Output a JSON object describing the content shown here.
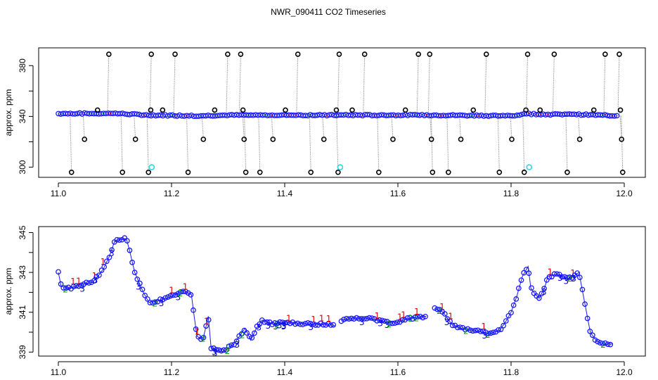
{
  "title": "NWR_090411  CO2 Timeseries",
  "colors": {
    "raw_points": "#000000",
    "raw_lines": "#9a9a9a",
    "blue": "#1a1aff",
    "flagged": "#33d6e0",
    "label_1": "#e00000",
    "label_2": "#00a000",
    "label_3": "#0000cc",
    "mean_line": "#1a1aff"
  },
  "chart_data": [
    {
      "type": "scatter",
      "title": "NWR_090411  CO2 Timeseries",
      "xlabel": "",
      "ylabel": "approx. ppm",
      "xlim": [
        11.0,
        12.0
      ],
      "ylim": [
        292,
        394
      ],
      "xticks": [
        "11.0",
        "11.2",
        "11.4",
        "11.6",
        "11.8",
        "12.0"
      ],
      "yticks": [
        "300",
        "340",
        "380"
      ],
      "grid": false,
      "series": [
        {
          "description": "raw points (black circles, grey drop lines)",
          "baseline": [
            [
              11.0,
              342.2
            ],
            [
              11.1,
              342.4
            ],
            [
              11.16,
              341.0
            ],
            [
              11.25,
              340.5
            ],
            [
              11.3,
              341.0
            ],
            [
              11.5,
              341.0
            ],
            [
              11.66,
              341.0
            ],
            [
              11.8,
              340.5
            ],
            [
              11.83,
              342.0
            ],
            [
              11.88,
              341.5
            ],
            [
              11.92,
              341.5
            ],
            [
              11.99,
              340.5
            ]
          ],
          "outliers": [
            [
              11.022,
              296
            ],
            [
              11.045,
              322
            ],
            [
              11.068,
              345
            ],
            [
              11.088,
              389
            ],
            [
              11.112,
              296
            ],
            [
              11.135,
              322
            ],
            [
              11.158,
              296
            ],
            [
              11.162,
              345
            ],
            [
              11.163,
              389
            ],
            [
              11.183,
              345
            ],
            [
              11.205,
              389
            ],
            [
              11.228,
              296
            ],
            [
              11.255,
              322
            ],
            [
              11.275,
              345
            ],
            [
              11.298,
              389
            ],
            [
              11.321,
              389
            ],
            [
              11.325,
              345
            ],
            [
              11.327,
              322
            ],
            [
              11.33,
              296
            ],
            [
              11.355,
              296
            ],
            [
              11.378,
              322
            ],
            [
              11.4,
              345
            ],
            [
              11.422,
              389
            ],
            [
              11.445,
              296
            ],
            [
              11.468,
              322
            ],
            [
              11.49,
              345
            ],
            [
              11.493,
              296
            ],
            [
              11.495,
              389
            ],
            [
              11.518,
              345
            ],
            [
              11.54,
              389
            ],
            [
              11.565,
              296
            ],
            [
              11.59,
              322
            ],
            [
              11.612,
              345
            ],
            [
              11.635,
              389
            ],
            [
              11.655,
              389
            ],
            [
              11.658,
              322
            ],
            [
              11.66,
              296
            ],
            [
              11.688,
              296
            ],
            [
              11.71,
              322
            ],
            [
              11.732,
              345
            ],
            [
              11.755,
              389
            ],
            [
              11.778,
              296
            ],
            [
              11.8,
              322
            ],
            [
              11.822,
              296
            ],
            [
              11.825,
              345
            ],
            [
              11.828,
              389
            ],
            [
              11.85,
              345
            ],
            [
              11.875,
              389
            ],
            [
              11.898,
              296
            ],
            [
              11.92,
              322
            ],
            [
              11.945,
              345
            ],
            [
              11.965,
              389
            ],
            [
              11.99,
              389
            ],
            [
              11.992,
              345
            ],
            [
              11.994,
              322
            ],
            [
              11.996,
              296
            ]
          ],
          "flagged": [
            [
              11.165,
              300
            ],
            [
              11.498,
              300
            ],
            [
              11.832,
              300
            ]
          ]
        }
      ]
    },
    {
      "type": "line",
      "title": "",
      "xlabel": "",
      "ylabel": "approx. ppm",
      "xlim": [
        11.0,
        12.0
      ],
      "ylim": [
        338.8,
        345.3
      ],
      "xticks": [
        "11.0",
        "11.2",
        "11.4",
        "11.6",
        "11.8",
        "12.0"
      ],
      "yticks": [
        "339",
        "341",
        "343",
        "345"
      ],
      "grid": false,
      "point_labels": [
        "1",
        "2",
        "3"
      ],
      "trace": [
        [
          11.0,
          343.0
        ],
        [
          11.005,
          342.3
        ],
        [
          11.02,
          342.2
        ],
        [
          11.04,
          342.4
        ],
        [
          11.06,
          342.5
        ],
        [
          11.07,
          342.8
        ],
        [
          11.08,
          343.2
        ],
        [
          11.09,
          343.8
        ],
        [
          11.1,
          344.6
        ],
        [
          11.12,
          344.7
        ],
        [
          11.125,
          344.2
        ],
        [
          11.135,
          343.0
        ],
        [
          11.15,
          342.0
        ],
        [
          11.16,
          341.5
        ],
        [
          11.18,
          341.6
        ],
        [
          11.2,
          341.8
        ],
        [
          11.22,
          342.1
        ],
        [
          11.235,
          341.9
        ],
        [
          11.24,
          340.8
        ],
        [
          11.245,
          339.8
        ],
        [
          11.255,
          339.6
        ],
        [
          11.262,
          340.4
        ],
        [
          11.265,
          340.8
        ],
        [
          11.27,
          339.2
        ],
        [
          11.29,
          339.0
        ],
        [
          11.31,
          339.4
        ],
        [
          11.33,
          340.2
        ],
        [
          11.34,
          339.6
        ],
        [
          11.35,
          340.2
        ],
        [
          11.36,
          340.6
        ],
        [
          11.38,
          340.4
        ],
        [
          11.4,
          340.5
        ],
        [
          11.45,
          340.4
        ],
        [
          11.48,
          340.4
        ],
        [
          11.49,
          340.3
        ],
        null,
        [
          11.5,
          340.6
        ],
        [
          11.52,
          340.7
        ],
        [
          11.55,
          340.7
        ],
        [
          11.58,
          340.5
        ],
        [
          11.6,
          340.5
        ],
        [
          11.62,
          340.7
        ],
        [
          11.65,
          340.8
        ],
        null,
        [
          11.665,
          341.2
        ],
        [
          11.68,
          341.0
        ],
        [
          11.695,
          340.4
        ],
        [
          11.71,
          340.2
        ],
        [
          11.73,
          340.1
        ],
        [
          11.75,
          340.0
        ],
        [
          11.76,
          339.9
        ],
        [
          11.78,
          340.1
        ],
        [
          11.79,
          340.5
        ],
        [
          11.8,
          341.0
        ],
        [
          11.81,
          341.8
        ],
        [
          11.82,
          342.8
        ],
        [
          11.83,
          343.3
        ],
        [
          11.835,
          342.2
        ],
        [
          11.84,
          342.0
        ],
        [
          11.85,
          341.7
        ],
        [
          11.86,
          342.3
        ],
        [
          11.865,
          342.8
        ],
        [
          11.88,
          342.9
        ],
        [
          11.9,
          342.7
        ],
        [
          11.91,
          342.8
        ],
        [
          11.92,
          343.0
        ],
        [
          11.93,
          341.5
        ],
        [
          11.94,
          340.0
        ],
        [
          11.95,
          339.6
        ],
        [
          11.96,
          339.4
        ],
        [
          11.98,
          339.4
        ]
      ]
    }
  ]
}
